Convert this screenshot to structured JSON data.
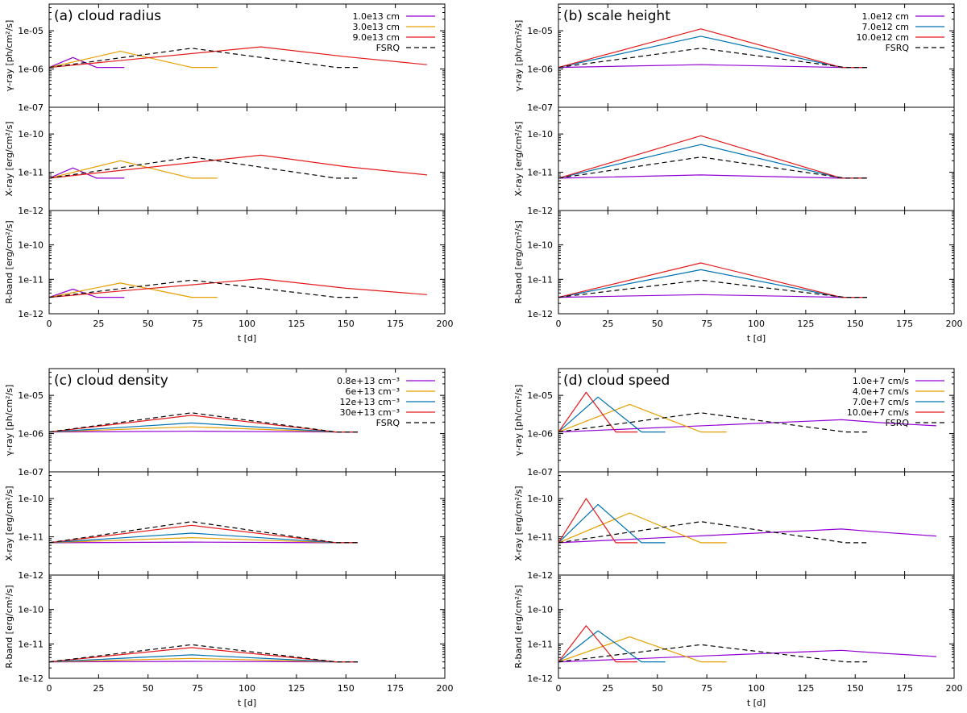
{
  "chart_data": [
    {
      "type": "line",
      "title": "(a) cloud radius",
      "xlabel": "t [d]",
      "xlim": [
        0,
        200
      ],
      "xticks": [
        "0",
        "25",
        "50",
        "75",
        "100",
        "125",
        "150",
        "175",
        "200"
      ],
      "legend_location": "top-right",
      "series": [
        {
          "name": "1.0e13 cm",
          "color": "#9400d3",
          "dash": "solid",
          "t": [
            0,
            12,
            24,
            38
          ]
        },
        {
          "name": "3.0e13 cm",
          "color": "#e69f00",
          "dash": "solid",
          "t": [
            0,
            36,
            72,
            85
          ]
        },
        {
          "name": "9.0e13 cm",
          "color": "#e41a1c",
          "dash": "solid",
          "t": [
            0,
            107,
            150,
            191
          ]
        },
        {
          "name": "FSRQ",
          "color": "#000000",
          "dash": "dashed",
          "t": [
            0,
            72,
            145,
            156
          ]
        }
      ],
      "subplots": [
        {
          "ylabel": "γ-ray [ph/cm²/s]",
          "ylim": [
            1e-07,
            5e-05
          ],
          "yticks": [
            "1e-07",
            "1e-06",
            "1e-05"
          ],
          "values": [
            [
              1.1e-06,
              2e-06,
              1.1e-06,
              1.1e-06
            ],
            [
              1.1e-06,
              2.9e-06,
              1.1e-06,
              1.1e-06
            ],
            [
              1.1e-06,
              3.8e-06,
              2.1e-06,
              1.3e-06
            ],
            [
              1.1e-06,
              3.5e-06,
              1.1e-06,
              1.1e-06
            ]
          ]
        },
        {
          "ylabel": "X-ray [erg/cm²/s]",
          "ylim": [
            1e-12,
            5e-10
          ],
          "yticks": [
            "1e-12",
            "1e-11",
            "1e-10"
          ],
          "values": [
            [
              7e-12,
              1.3e-11,
              7e-12,
              7e-12
            ],
            [
              7e-12,
              2e-11,
              7e-12,
              7e-12
            ],
            [
              7e-12,
              2.8e-11,
              1.4e-11,
              8.5e-12
            ],
            [
              7e-12,
              2.5e-11,
              7e-12,
              7e-12
            ]
          ]
        },
        {
          "ylabel": "R-band [erg/cm²/s]",
          "ylim": [
            1e-12,
            1e-09
          ],
          "yticks": [
            "1e-12",
            "1e-11",
            "1e-10"
          ],
          "values": [
            [
              3e-12,
              5.2e-12,
              3e-12,
              3e-12
            ],
            [
              3e-12,
              7.8e-12,
              3e-12,
              3e-12
            ],
            [
              3e-12,
              1.04e-11,
              5.5e-12,
              3.6e-12
            ],
            [
              3e-12,
              9.5e-12,
              3e-12,
              3e-12
            ]
          ]
        }
      ]
    },
    {
      "type": "line",
      "title": "(b) scale height",
      "xlabel": "t [d]",
      "xlim": [
        0,
        200
      ],
      "xticks": [
        "0",
        "25",
        "50",
        "75",
        "100",
        "125",
        "150",
        "175",
        "200"
      ],
      "legend_location": "top-right",
      "series": [
        {
          "name": "1.0e12 cm",
          "color": "#9400d3",
          "dash": "solid",
          "t": [
            0,
            72,
            143,
            156
          ]
        },
        {
          "name": "7.0e12 cm",
          "color": "#0072b2",
          "dash": "solid",
          "t": [
            0,
            72,
            143,
            156
          ]
        },
        {
          "name": "10.0e12 cm",
          "color": "#e41a1c",
          "dash": "solid",
          "t": [
            0,
            72,
            143,
            156
          ]
        },
        {
          "name": "FSRQ",
          "color": "#000000",
          "dash": "dashed",
          "t": [
            0,
            72,
            145,
            156
          ]
        }
      ],
      "subplots": [
        {
          "ylabel": "γ-ray [ph/cm²/s]",
          "ylim": [
            1e-07,
            5e-05
          ],
          "yticks": [
            "1e-07",
            "1e-06",
            "1e-05"
          ],
          "values": [
            [
              1.1e-06,
              1.3e-06,
              1.1e-06,
              1.1e-06
            ],
            [
              1.1e-06,
              7.2e-06,
              1.1e-06,
              1.1e-06
            ],
            [
              1.1e-06,
              1.12e-05,
              1.1e-06,
              1.1e-06
            ],
            [
              1.1e-06,
              3.5e-06,
              1.1e-06,
              1.1e-06
            ]
          ]
        },
        {
          "ylabel": "X-ray [erg/cm²/s]",
          "ylim": [
            1e-12,
            5e-10
          ],
          "yticks": [
            "1e-12",
            "1e-11",
            "1e-10"
          ],
          "values": [
            [
              7e-12,
              8.5e-12,
              7e-12,
              7e-12
            ],
            [
              7e-12,
              5.3e-11,
              7e-12,
              7e-12
            ],
            [
              7e-12,
              9e-11,
              7e-12,
              7e-12
            ],
            [
              7e-12,
              2.5e-11,
              7e-12,
              7e-12
            ]
          ]
        },
        {
          "ylabel": "R-band [erg/cm²/s]",
          "ylim": [
            1e-12,
            1e-09
          ],
          "yticks": [
            "1e-12",
            "1e-11",
            "1e-10"
          ],
          "values": [
            [
              3e-12,
              3.6e-12,
              3e-12,
              3e-12
            ],
            [
              3e-12,
              1.9e-11,
              3e-12,
              3e-12
            ],
            [
              3e-12,
              3e-11,
              3e-12,
              3e-12
            ],
            [
              3e-12,
              9.5e-12,
              3e-12,
              3e-12
            ]
          ]
        }
      ]
    },
    {
      "type": "line",
      "title": "(c) cloud density",
      "xlabel": "t [d]",
      "xlim": [
        0,
        200
      ],
      "xticks": [
        "0",
        "25",
        "50",
        "75",
        "100",
        "125",
        "150",
        "175",
        "200"
      ],
      "legend_location": "top-right",
      "series": [
        {
          "name": "0.8e+13 cm⁻³",
          "color": "#9400d3",
          "dash": "solid",
          "t": [
            0,
            72,
            145,
            156
          ]
        },
        {
          "name": "6e+13 cm⁻³",
          "color": "#e69f00",
          "dash": "solid",
          "t": [
            0,
            72,
            145,
            156
          ]
        },
        {
          "name": "12e+13 cm⁻³",
          "color": "#0072b2",
          "dash": "solid",
          "t": [
            0,
            72,
            145,
            156
          ]
        },
        {
          "name": "30e+13 cm⁻³",
          "color": "#e41a1c",
          "dash": "solid",
          "t": [
            0,
            72,
            145,
            156
          ]
        },
        {
          "name": "FSRQ",
          "color": "#000000",
          "dash": "dashed",
          "t": [
            0,
            72,
            145,
            156
          ]
        }
      ],
      "subplots": [
        {
          "ylabel": "γ-ray [ph/cm²/s]",
          "ylim": [
            1e-07,
            5e-05
          ],
          "yticks": [
            "1e-07",
            "1e-06",
            "1e-05"
          ],
          "values": [
            [
              1.1e-06,
              1.15e-06,
              1.1e-06,
              1.1e-06
            ],
            [
              1.1e-06,
              1.5e-06,
              1.1e-06,
              1.1e-06
            ],
            [
              1.1e-06,
              1.9e-06,
              1.1e-06,
              1.1e-06
            ],
            [
              1.1e-06,
              3e-06,
              1.1e-06,
              1.1e-06
            ],
            [
              1.1e-06,
              3.5e-06,
              1.1e-06,
              1.1e-06
            ]
          ]
        },
        {
          "ylabel": "X-ray [erg/cm²/s]",
          "ylim": [
            1e-12,
            5e-10
          ],
          "yticks": [
            "1e-12",
            "1e-11",
            "1e-10"
          ],
          "values": [
            [
              7e-12,
              7.3e-12,
              7e-12,
              7e-12
            ],
            [
              7e-12,
              9.5e-12,
              7e-12,
              7e-12
            ],
            [
              7e-12,
              1.25e-11,
              7e-12,
              7e-12
            ],
            [
              7e-12,
              2e-11,
              7e-12,
              7e-12
            ],
            [
              7e-12,
              2.5e-11,
              7e-12,
              7e-12
            ]
          ]
        },
        {
          "ylabel": "R-band [erg/cm²/s]",
          "ylim": [
            1e-12,
            1e-09
          ],
          "yticks": [
            "1e-12",
            "1e-11",
            "1e-10"
          ],
          "values": [
            [
              3e-12,
              3.1e-12,
              3e-12,
              3e-12
            ],
            [
              3e-12,
              3.8e-12,
              3e-12,
              3e-12
            ],
            [
              3e-12,
              4.8e-12,
              3e-12,
              3e-12
            ],
            [
              3e-12,
              7.8e-12,
              3e-12,
              3e-12
            ],
            [
              3e-12,
              9.5e-12,
              3e-12,
              3e-12
            ]
          ]
        }
      ]
    },
    {
      "type": "line",
      "title": "(d) cloud speed",
      "xlabel": "t [d]",
      "xlim": [
        0,
        200
      ],
      "xticks": [
        "0",
        "25",
        "50",
        "75",
        "100",
        "125",
        "150",
        "175",
        "200"
      ],
      "legend_location": "top-right",
      "series": [
        {
          "name": "1.0e+7 cm/s",
          "color": "#9400d3",
          "dash": "solid",
          "t": [
            0,
            143,
            165,
            191
          ]
        },
        {
          "name": "4.0e+7 cm/s",
          "color": "#e69f00",
          "dash": "solid",
          "t": [
            0,
            36,
            72,
            85
          ]
        },
        {
          "name": "7.0e+7 cm/s",
          "color": "#0072b2",
          "dash": "solid",
          "t": [
            0,
            20,
            42,
            54
          ]
        },
        {
          "name": "10.0e+7 cm/s",
          "color": "#e41a1c",
          "dash": "solid",
          "t": [
            0,
            14,
            29,
            40
          ]
        },
        {
          "name": "FSRQ",
          "color": "#000000",
          "dash": "dashed",
          "t": [
            0,
            72,
            145,
            156
          ]
        }
      ],
      "subplots": [
        {
          "ylabel": "γ-ray [ph/cm²/s]",
          "ylim": [
            1e-07,
            5e-05
          ],
          "yticks": [
            "1e-07",
            "1e-06",
            "1e-05"
          ],
          "values": [
            [
              1.1e-06,
              2.3e-06,
              1.9e-06,
              1.6e-06
            ],
            [
              1.1e-06,
              5.8e-06,
              1.1e-06,
              1.1e-06
            ],
            [
              1.1e-06,
              9e-06,
              1.1e-06,
              1.1e-06
            ],
            [
              1.1e-06,
              1.2e-05,
              1.1e-06,
              1.1e-06
            ],
            [
              1.1e-06,
              3.5e-06,
              1.1e-06,
              1.1e-06
            ]
          ]
        },
        {
          "ylabel": "X-ray [erg/cm²/s]",
          "ylim": [
            1e-12,
            5e-10
          ],
          "yticks": [
            "1e-12",
            "1e-11",
            "1e-10"
          ],
          "values": [
            [
              7e-12,
              1.6e-11,
              1.3e-11,
              1.05e-11
            ],
            [
              7e-12,
              4.2e-11,
              7e-12,
              7e-12
            ],
            [
              7e-12,
              7e-11,
              7e-12,
              7e-12
            ],
            [
              7e-12,
              1e-10,
              7e-12,
              7e-12
            ],
            [
              7e-12,
              2.5e-11,
              7e-12,
              7e-12
            ]
          ]
        },
        {
          "ylabel": "R-band [erg/cm²/s]",
          "ylim": [
            1e-12,
            1e-09
          ],
          "yticks": [
            "1e-12",
            "1e-11",
            "1e-10"
          ],
          "values": [
            [
              3e-12,
              6.5e-12,
              5.3e-12,
              4.3e-12
            ],
            [
              3e-12,
              1.6e-11,
              3e-12,
              3e-12
            ],
            [
              3e-12,
              2.4e-11,
              3e-12,
              3e-12
            ],
            [
              3e-12,
              3.4e-11,
              3e-12,
              3e-12
            ],
            [
              3e-12,
              9.5e-12,
              3e-12,
              3e-12
            ]
          ]
        }
      ]
    }
  ]
}
